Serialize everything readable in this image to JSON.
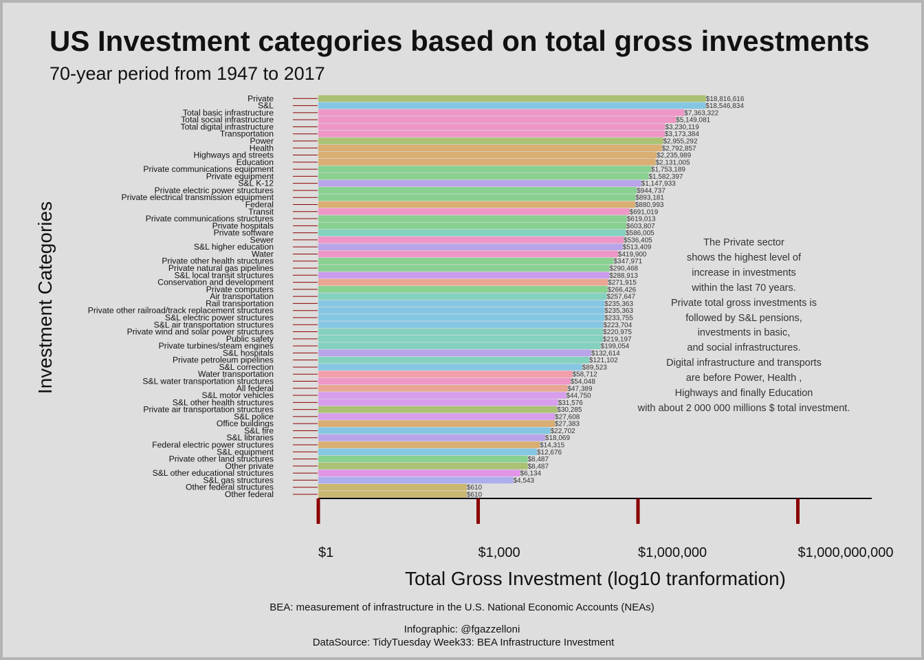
{
  "title": "US Investment categories based on total gross investments",
  "subtitle": "70-year period from 1947 to 2017",
  "annotation": [
    "The Private sector",
    "shows the highest level of",
    "increase in investments",
    "within the last 70 years.",
    "Private total gross investments is",
    "followed by S&L pensions,",
    "investments in basic,",
    "and social infrastructures.",
    "Digital infrastructure and transports",
    "are before Power, Health ,",
    "Highways and finally Education",
    "with about 2 000 000 millions $ total investment."
  ],
  "caption_source": "BEA: measurement of infrastructure in the U.S. National Economic Accounts (NEAs)",
  "caption_author": "Infographic: @fgazzelloni",
  "caption_datasource": "DataSource: TidyTuesday Week33: BEA Infrastructure Investment",
  "chart_data": {
    "type": "bar",
    "orientation": "horizontal",
    "xscale": "log10",
    "xlabel": "Total Gross Investment (log10 tranformation)",
    "ylabel": "Investment Categories",
    "xticks": [
      1,
      1000,
      1000000,
      1000000000
    ],
    "xtick_labels": [
      "$1",
      "$1,000",
      "$1,000,000",
      "$1,000,000,000"
    ],
    "categories": [
      "Private",
      "S&L",
      "Total basic infrastructure",
      "Total social infrastructure",
      "Total digital infrastructure",
      "Transportation",
      "Power",
      "Health",
      "Highways and streets",
      "Education",
      "Private communications equipment",
      "Private equipment",
      "S&L K-12",
      "Private electric power structures",
      "Private electrical transmission equipment",
      "Federal",
      "Transit",
      "Private communications structures",
      "Private hospitals",
      "Private software",
      "Sewer",
      "S&L higher education",
      "Water",
      "Private other health structures",
      "Private natural gas pipelines",
      "S&L local transit structures",
      "Conservation and development",
      "Private computers",
      "Air transportation",
      "Rail transportation",
      "Private other railroad/track replacement structures",
      "S&L electric power structures",
      "S&L air transportation structures",
      "Private wind and solar power structures",
      "Public safety",
      "Private turbines/steam engines",
      "S&L hospitals",
      "Private petroleum pipelines",
      "S&L correction",
      "Water transportation",
      "S&L water transportation structures",
      "All federal",
      "S&L motor vehicles",
      "S&L other health structures",
      "Private air transportation structures",
      "S&L police",
      "Office buildings",
      "S&L fire",
      "S&L libraries",
      "Federal electric power structures",
      "S&L equipment",
      "Private other land structures",
      "Other private",
      "S&L other educational structures",
      "S&L gas structures",
      "Other federal structures",
      "Other federal"
    ],
    "values": [
      18816616,
      18546834,
      7363322,
      5149081,
      3230119,
      3173384,
      2955292,
      2792857,
      2235989,
      2131005,
      1753189,
      1582397,
      1147933,
      944737,
      893181,
      880993,
      691019,
      619013,
      603807,
      586005,
      536405,
      513409,
      419900,
      347971,
      290468,
      288913,
      271915,
      266426,
      257647,
      235363,
      235363,
      233755,
      223704,
      220975,
      219197,
      199054,
      132614,
      121102,
      89523,
      58712,
      54048,
      47389,
      44750,
      31576,
      30285,
      27608,
      27383,
      22702,
      18069,
      14315,
      12676,
      8487,
      8487,
      6134,
      4543,
      610,
      610
    ],
    "value_labels": [
      "$18,816,616",
      "$18,546,834",
      "$7,363,322",
      "$5,149,081",
      "$3,230,119",
      "$3,173,384",
      "$2,955,292",
      "$2,792,857",
      "$2,235,989",
      "$2,131,005",
      "$1,753,189",
      "$1,582,397",
      "$1,147,933",
      "$944,737",
      "$893,181",
      "$880,993",
      "$691,019",
      "$619,013",
      "$603,807",
      "$586,005",
      "$536,405",
      "$513,409",
      "$419,900",
      "$347,971",
      "$290,468",
      "$288,913",
      "$271,915",
      "$266,426",
      "$257,647",
      "$235,363",
      "$235,363",
      "$233,755",
      "$223,704",
      "$220,975",
      "$219,197",
      "$199,054",
      "$132,614",
      "$121,102",
      "$89,523",
      "$58,712",
      "$54,048",
      "$47,389",
      "$44,750",
      "$31,576",
      "$30,285",
      "$27,608",
      "$27,383",
      "$22,702",
      "$18,069",
      "$14,315",
      "$12,676",
      "$8,487",
      "$8,487",
      "$6,134",
      "$4,543",
      "$610",
      "$610"
    ],
    "colors": [
      "#a8bf6e",
      "#7fc5e3",
      "#ee92c4",
      "#ee92c4",
      "#ee92c4",
      "#ee92c4",
      "#a8bf6e",
      "#d8ab6c",
      "#d8ab6c",
      "#d8ab6c",
      "#84cf8c",
      "#84cf8c",
      "#b6a0ea",
      "#84cf8c",
      "#84cf8c",
      "#d8ab6c",
      "#ee92c4",
      "#84cf8c",
      "#84cf8c",
      "#7ed0bd",
      "#ee92c4",
      "#b6a0ea",
      "#ee92c4",
      "#84cf8c",
      "#84cf8c",
      "#c898ec",
      "#e9a28e",
      "#84cf8c",
      "#7ed0bd",
      "#7fc5e3",
      "#7fc5e3",
      "#7fc5e3",
      "#7fc5e3",
      "#7ed0bd",
      "#7ed0bd",
      "#7ed0bd",
      "#b6a0ea",
      "#7ed0bd",
      "#7fc5e3",
      "#f39aa6",
      "#ee92c4",
      "#e9a28e",
      "#d69aec",
      "#d69aec",
      "#a8bf6e",
      "#d69aec",
      "#d8ab6c",
      "#7fc5e3",
      "#b6a0ea",
      "#d8ab6c",
      "#7fc5e3",
      "#84cf8c",
      "#a8bf6e",
      "#e18fe6",
      "#a9acee",
      "#c8b46c",
      "#c8b46c"
    ],
    "grid": false,
    "legend": "none"
  }
}
